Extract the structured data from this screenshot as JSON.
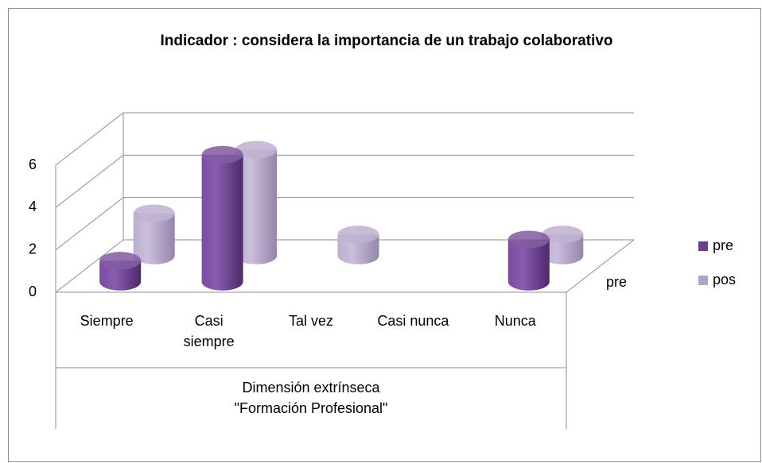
{
  "chart_data": {
    "type": "bar3d-cylinder",
    "title": "Indicador : considera la importancia de un trabajo colaborativo",
    "categories": [
      "Siempre",
      "Casi siempre",
      "Tal vez",
      "Casi nunca",
      "Nunca"
    ],
    "category_group": "Dimensión extrínseca \"Formación Profesional\"",
    "series": [
      {
        "name": "pre",
        "color": "#6a3d8e",
        "values": [
          1,
          6,
          0,
          0,
          2
        ]
      },
      {
        "name": "pos",
        "color": "#b4a3c9",
        "values": [
          2,
          5,
          1,
          0,
          1
        ]
      }
    ],
    "ylim": [
      0,
      6
    ],
    "yticks": [
      0,
      2,
      4,
      6
    ],
    "grid": true,
    "legend": "right"
  }
}
